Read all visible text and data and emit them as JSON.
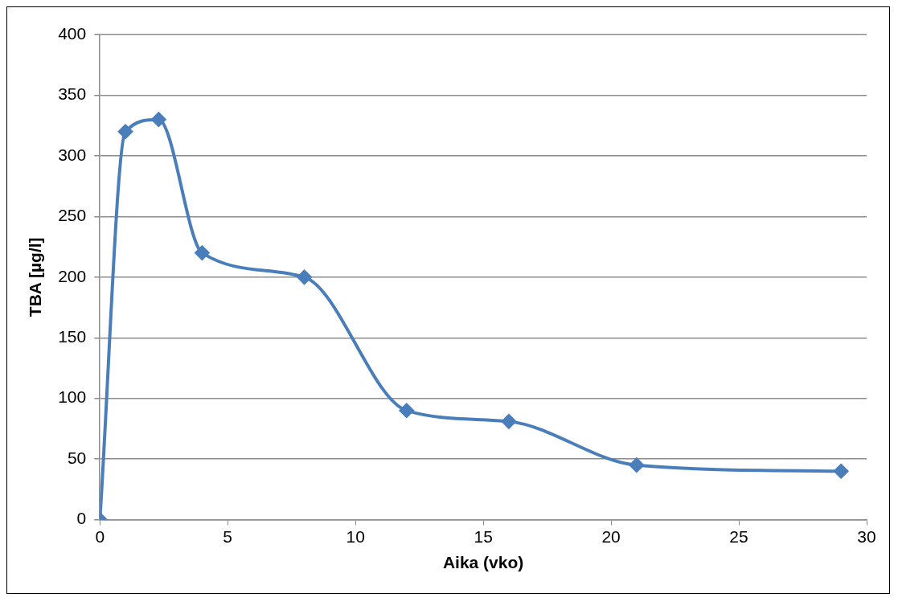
{
  "chart_data": {
    "type": "line",
    "xlabel": "Aika (vko)",
    "ylabel": "TBA [µg/l]",
    "x": [
      0,
      1,
      2.3,
      4,
      8,
      12,
      16,
      21,
      29
    ],
    "series": [
      {
        "color": "#4a7ebb",
        "values": [
          0,
          320,
          330,
          220,
          200,
          90,
          81,
          45,
          40
        ]
      }
    ],
    "xlim": [
      0,
      30
    ],
    "xticks": [
      0,
      5,
      10,
      15,
      20,
      25,
      30
    ],
    "ylim": [
      0,
      400
    ],
    "yticks": [
      0,
      50,
      100,
      150,
      200,
      250,
      300,
      350,
      400
    ],
    "grid": "y",
    "legend": false,
    "marker": "diamond",
    "line_style": "solid"
  }
}
